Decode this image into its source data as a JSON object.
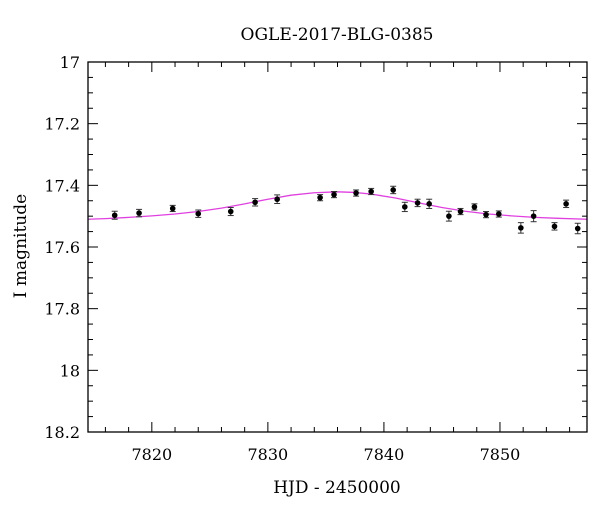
{
  "chart_data": {
    "type": "scatter",
    "title": "OGLE-2017-BLG-0385",
    "xlabel": "HJD - 2450000",
    "ylabel": "I magnitude",
    "xlim": [
      7814.5,
      7857.5
    ],
    "ylim": [
      17.0,
      18.2
    ],
    "y_inverted": true,
    "grid": false,
    "x_ticks": [
      "7820",
      "7830",
      "7840",
      "7850"
    ],
    "y_ticks": [
      "17",
      "17.2",
      "17.4",
      "17.6",
      "17.8",
      "18",
      "18.2"
    ],
    "series": [
      {
        "type": "scatter",
        "x": [
          7816.8,
          7818.9,
          7821.8,
          7824.0,
          7826.8,
          7828.9,
          7830.8,
          7834.5,
          7835.7,
          7837.6,
          7838.9,
          7840.8,
          7841.8,
          7842.9,
          7843.9,
          7845.6,
          7846.6,
          7847.8,
          7848.8,
          7849.9,
          7851.8,
          7852.9,
          7854.7,
          7855.7,
          7856.7
        ],
        "y": [
          17.497,
          17.49,
          17.475,
          17.492,
          17.485,
          17.455,
          17.445,
          17.44,
          17.43,
          17.425,
          17.42,
          17.415,
          17.47,
          17.457,
          17.46,
          17.5,
          17.485,
          17.47,
          17.495,
          17.493,
          17.538,
          17.5,
          17.533,
          17.46,
          17.54
        ],
        "yerr": [
          0.013,
          0.012,
          0.01,
          0.012,
          0.013,
          0.012,
          0.014,
          0.01,
          0.01,
          0.01,
          0.01,
          0.012,
          0.015,
          0.012,
          0.015,
          0.016,
          0.01,
          0.01,
          0.01,
          0.01,
          0.017,
          0.018,
          0.012,
          0.012,
          0.017
        ],
        "color": "#000000"
      },
      {
        "type": "line",
        "x": [
          7814.5,
          7816.0,
          7818.0,
          7820.0,
          7822.0,
          7824.0,
          7826.0,
          7828.0,
          7830.0,
          7832.0,
          7834.0,
          7836.0,
          7837.5,
          7839.0,
          7841.0,
          7843.0,
          7845.0,
          7847.0,
          7849.0,
          7851.0,
          7853.0,
          7855.0,
          7857.5
        ],
        "y": [
          17.51,
          17.508,
          17.504,
          17.499,
          17.493,
          17.485,
          17.474,
          17.46,
          17.445,
          17.432,
          17.424,
          17.421,
          17.423,
          17.429,
          17.441,
          17.457,
          17.472,
          17.484,
          17.493,
          17.499,
          17.504,
          17.507,
          17.51
        ],
        "color": "#e040e0"
      }
    ]
  }
}
